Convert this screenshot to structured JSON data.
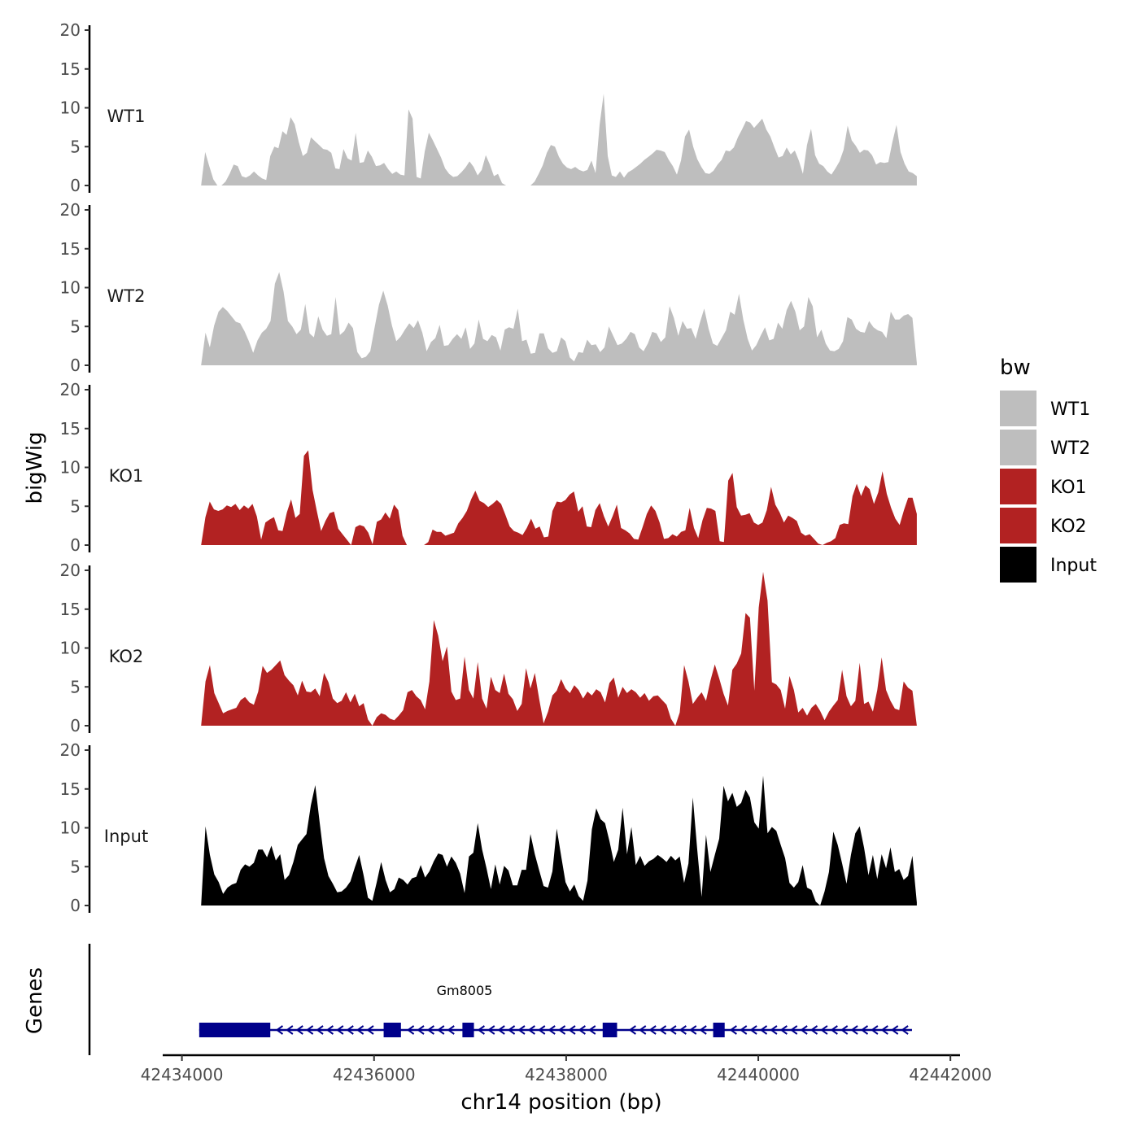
{
  "chart_data": {
    "type": "area",
    "ylabel": "bigWig",
    "xlabel": "chr14 position (bp)",
    "ylim": [
      0,
      20
    ],
    "y_ticks": [
      "0",
      "5",
      "10",
      "15",
      "20"
    ],
    "xlim": [
      42433800,
      42442100
    ],
    "x_ticks": [
      42434000,
      42436000,
      42438000,
      42440000,
      42442000
    ],
    "x_tick_labels": [
      "42434000",
      "42436000",
      "42438000",
      "42440000",
      "42442000"
    ],
    "data_x_start": 42434200,
    "data_x_end": 42441650,
    "series": [
      {
        "name": "WT1",
        "color": "#bebebe",
        "values": [
          0,
          4.3,
          2.5,
          0.8,
          0,
          0,
          0.5,
          1.5,
          2.7,
          2.5,
          1.2,
          1,
          1.3,
          1.8,
          1.3,
          0.9,
          0.7,
          3.8,
          5,
          4.8,
          7,
          6.5,
          8.8,
          7.9,
          5.6,
          3.8,
          4.2,
          6.2,
          5.7,
          5.2,
          4.7,
          4.6,
          4.2,
          2.2,
          2.1,
          4.7,
          3.5,
          3.2,
          6.8,
          2.9,
          3,
          4.5,
          3.7,
          2.5,
          2.6,
          2.9,
          2.1,
          1.5,
          1.8,
          1.4,
          1.3,
          9.8,
          8.6,
          1.1,
          0.9,
          4.4,
          6.8,
          5.8,
          4.7,
          3.6,
          2.2,
          1.5,
          1.1,
          1.2,
          1.7,
          2.3,
          3.1,
          2.4,
          1.3,
          2,
          3.9,
          2.7,
          1.2,
          1.5,
          0.3,
          0,
          0,
          0,
          0,
          0,
          0,
          0,
          0.5,
          1.5,
          2.6,
          4.2,
          5.2,
          5,
          3.7,
          2.8,
          2.3,
          2.1,
          2.4,
          2,
          1.8,
          2,
          3.2,
          1.6,
          7.8,
          11.8,
          3.8,
          1.3,
          1.1,
          1.8,
          1,
          1.7,
          2,
          2.4,
          2.8,
          3.3,
          3.7,
          4.1,
          4.6,
          4.5,
          4.3,
          3.3,
          2.5,
          1.4,
          3.2,
          6.3,
          7.2,
          5,
          3.4,
          2.4,
          1.6,
          1.5,
          1.9,
          2.7,
          3.3,
          4.5,
          4.4,
          4.9,
          6.2,
          7.2,
          8.3,
          8.1,
          7.4,
          8,
          8.6,
          7.2,
          6.3,
          4.9,
          3.6,
          3.8,
          4.9,
          4,
          4.5,
          3.2,
          1.5,
          5.2,
          7.3,
          3.9,
          2.8,
          2.5,
          1.8,
          1.4,
          2.2,
          3.1,
          4.6,
          7.7,
          5.8,
          5.1,
          4.2,
          4.6,
          4.5,
          3.9,
          2.7,
          3,
          2.9,
          3,
          5.6,
          7.8,
          4.3,
          2.8,
          1.8,
          1.6,
          1.2
        ]
      },
      {
        "name": "WT2",
        "color": "#bebebe",
        "values": [
          0,
          4.2,
          2.3,
          5.1,
          6.9,
          7.5,
          7,
          6.3,
          5.6,
          5.4,
          4.4,
          3.1,
          1.6,
          3.2,
          4.2,
          4.7,
          5.7,
          10.5,
          12,
          9.5,
          5.7,
          5,
          4,
          4.6,
          7.9,
          4.1,
          3.6,
          6.3,
          4.6,
          3.8,
          4,
          8.8,
          3.9,
          4.4,
          5.5,
          4.8,
          1.7,
          0.9,
          1.1,
          1.8,
          4.9,
          7.8,
          9.6,
          7.7,
          5.1,
          3.1,
          3.7,
          4.6,
          5.4,
          4.8,
          5.8,
          4.2,
          1.8,
          3,
          3.5,
          5.2,
          2.5,
          2.6,
          3.4,
          4,
          3.4,
          4.9,
          2.1,
          2.8,
          5.9,
          3.4,
          3.1,
          3.9,
          3.6,
          1.9,
          4.6,
          4.9,
          4.7,
          7.3,
          3.1,
          3.3,
          1.5,
          1.6,
          4.1,
          4.1,
          2.2,
          1.6,
          1.8,
          3.6,
          3.1,
          1,
          0.5,
          1.7,
          1.6,
          3.3,
          2.6,
          2.7,
          1.7,
          2.3,
          5,
          3.8,
          2.6,
          2.8,
          3.4,
          4.3,
          4,
          2.3,
          1.8,
          2.8,
          4.3,
          4.1,
          3,
          3.6,
          7.6,
          6.1,
          3.8,
          5.7,
          4.7,
          4.8,
          3.4,
          5.5,
          7.3,
          4.7,
          2.8,
          2.5,
          3.5,
          4.5,
          6.9,
          6.5,
          9.2,
          5.9,
          3.4,
          1.9,
          2.6,
          3.8,
          4.9,
          3.2,
          3.4,
          5.5,
          4.7,
          7.1,
          8.3,
          6.9,
          4.5,
          5,
          8.8,
          7.6,
          3.6,
          4.6,
          2.8,
          1.9,
          1.8,
          2.1,
          3.1,
          6.2,
          5.9,
          4.7,
          4.3,
          4.2,
          5.7,
          4.9,
          4.5,
          4.3,
          3.5,
          6.9,
          5.9,
          5.9,
          6.4,
          6.6,
          6.1,
          0.3
        ]
      },
      {
        "name": "KO1",
        "color": "#b22222",
        "values": [
          0,
          3.6,
          5.6,
          4.6,
          4.4,
          4.6,
          5.1,
          4.9,
          5.3,
          4.5,
          5.1,
          4.7,
          5.3,
          3.7,
          0.7,
          2.9,
          3.3,
          3.6,
          1.9,
          1.8,
          4.2,
          5.9,
          3.5,
          4,
          11.5,
          12.2,
          7.1,
          4.4,
          1.8,
          3.1,
          4.1,
          4.3,
          2.1,
          1.4,
          0.7,
          0,
          2.3,
          2.6,
          2.4,
          1.6,
          0.1,
          3,
          3.3,
          4.2,
          3.4,
          5.2,
          4.5,
          1.2,
          0,
          0,
          0,
          0,
          0,
          0.4,
          2,
          1.7,
          1.7,
          1.2,
          1.4,
          1.6,
          2.8,
          3.5,
          4.4,
          5.9,
          7,
          5.7,
          5.4,
          4.9,
          5.3,
          5.8,
          5.3,
          3.9,
          2.4,
          1.8,
          1.6,
          1.3,
          2.2,
          3.4,
          2.1,
          2.4,
          1,
          1.1,
          4.4,
          5.6,
          5.5,
          5.8,
          6.5,
          6.9,
          4.3,
          5,
          2.4,
          2.3,
          4.5,
          5.4,
          3.7,
          2.4,
          3.7,
          5.2,
          2.2,
          1.9,
          1.5,
          0.8,
          0.7,
          2.3,
          4,
          5.1,
          4.4,
          2.9,
          0.8,
          0.9,
          1.4,
          1.1,
          1.7,
          1.9,
          4.8,
          2.2,
          0.9,
          3.2,
          4.8,
          4.7,
          4.4,
          0.5,
          0.4,
          8.3,
          9.3,
          4.9,
          3.8,
          3.9,
          4.1,
          2.9,
          2.6,
          2.9,
          4.5,
          7.5,
          5.2,
          4.2,
          2.9,
          3.8,
          3.5,
          3.1,
          1.6,
          1.2,
          1.4,
          0.8,
          0.2,
          0,
          0.3,
          0.5,
          0.9,
          2.6,
          2.8,
          2.7,
          6.3,
          7.9,
          6.3,
          7.7,
          7.2,
          5.3,
          6.8,
          9.5,
          6.6,
          4.8,
          3.4,
          2.6,
          4.5,
          6.1,
          6.1,
          4
        ]
      },
      {
        "name": "KO2",
        "color": "#b22222",
        "values": [
          0,
          5.7,
          7.8,
          4.2,
          2.9,
          1.6,
          1.9,
          2.1,
          2.3,
          3.3,
          3.7,
          3,
          2.7,
          4.4,
          7.7,
          6.8,
          7.2,
          7.8,
          8.4,
          6.5,
          5.8,
          5.2,
          3.9,
          5.8,
          4.4,
          4.3,
          4.8,
          3.8,
          6.8,
          5.6,
          3.5,
          2.9,
          3.2,
          4.3,
          3,
          4.1,
          2.5,
          2.9,
          0.8,
          0,
          1.1,
          1.6,
          1.4,
          0.9,
          0.7,
          1.3,
          2,
          4.3,
          4.6,
          3.8,
          3.3,
          2.1,
          5.7,
          13.6,
          11.6,
          8.3,
          10.2,
          4.4,
          3.3,
          3.5,
          8.9,
          4.6,
          3.5,
          8.2,
          3.5,
          2.2,
          6.3,
          4.6,
          4.2,
          6.7,
          4.1,
          3.4,
          1.9,
          2.8,
          7.4,
          4.8,
          6.8,
          3.4,
          0.3,
          1.8,
          3.9,
          4.5,
          6,
          4.8,
          4.2,
          5.2,
          4.6,
          3.5,
          4.4,
          3.9,
          4.7,
          4.3,
          3,
          5.5,
          6.2,
          3.6,
          5,
          4.2,
          4.7,
          4.3,
          3.6,
          4.2,
          3.2,
          3.8,
          3.9,
          3.3,
          2.7,
          0.9,
          0,
          1.7,
          7.8,
          5.7,
          2.8,
          3.6,
          4.3,
          3.2,
          5.8,
          7.9,
          6.1,
          4.1,
          2.6,
          7.2,
          8,
          9.3,
          14.5,
          13.9,
          4.5,
          15.2,
          19.8,
          16.1,
          5.6,
          5.3,
          4.6,
          2.2,
          6.4,
          4.6,
          1.7,
          2.3,
          1.3,
          2.3,
          2.8,
          1.9,
          0.7,
          1.8,
          2.6,
          3.3,
          7.2,
          3.8,
          2.5,
          3.2,
          8.1,
          2.8,
          3.1,
          1.8,
          4.6,
          8.8,
          4.6,
          3.2,
          2.2,
          2,
          5.7,
          4.9,
          4.5,
          0
        ]
      },
      {
        "name": "Input",
        "color": "#000000",
        "values": [
          0,
          10.2,
          6.5,
          4,
          3,
          1.5,
          2.3,
          2.7,
          2.9,
          4.6,
          5.3,
          5,
          5.5,
          7.2,
          7.2,
          6.2,
          7.7,
          5.8,
          6.6,
          3.3,
          3.9,
          5.6,
          7.8,
          8.5,
          9.2,
          12.9,
          15.5,
          10.7,
          6.1,
          3.8,
          2.8,
          1.7,
          1.8,
          2.3,
          3.1,
          4.9,
          6.5,
          3.9,
          1,
          0.6,
          3,
          5.6,
          3.3,
          1.7,
          2.1,
          3.6,
          3.3,
          2.7,
          3.5,
          3.7,
          5.2,
          3.6,
          4.4,
          5.7,
          6.7,
          6.5,
          5,
          6.3,
          5.5,
          4.1,
          1.6,
          6.3,
          6.8,
          10.6,
          7.2,
          4.8,
          2.1,
          5.3,
          2.7,
          5.1,
          4.5,
          2.6,
          2.6,
          4.6,
          4.6,
          9.2,
          6.6,
          4.5,
          2.5,
          2.3,
          4.4,
          9.9,
          6.4,
          3,
          1.8,
          2.7,
          1.2,
          0.6,
          3.2,
          9.8,
          12.5,
          11.1,
          10.6,
          8.3,
          5.6,
          7.2,
          12.6,
          6.6,
          10.1,
          5.2,
          6.4,
          5.1,
          5.7,
          6,
          6.5,
          6.1,
          5.6,
          6.4,
          5.8,
          6.3,
          2.9,
          5.4,
          13.9,
          7.2,
          1.1,
          9.1,
          4.3,
          6.5,
          8.6,
          15.4,
          13.4,
          14.5,
          12.7,
          13.2,
          14.9,
          13.9,
          10.7,
          9.9,
          16.7,
          9.3,
          10.1,
          9.6,
          7.8,
          6.1,
          2.9,
          2.3,
          3,
          5.2,
          2.3,
          2,
          0.5,
          0,
          1.8,
          4.3,
          9.5,
          7.8,
          5.4,
          2.8,
          6.5,
          9.3,
          10.2,
          7.4,
          3.9,
          6.5,
          3.4,
          6.6,
          4.8,
          7.5,
          4.3,
          4.7,
          3.3,
          3.8,
          6.4,
          0.4
        ]
      }
    ],
    "legend_title": "bw",
    "legend_position": "right",
    "legend": [
      {
        "label": "WT1",
        "color": "#bebebe"
      },
      {
        "label": "WT2",
        "color": "#bebebe"
      },
      {
        "label": "KO1",
        "color": "#b22222"
      },
      {
        "label": "KO2",
        "color": "#b22222"
      },
      {
        "label": "Input",
        "color": "#000000"
      }
    ],
    "genes_track": {
      "title": "Genes",
      "gene_name": "Gm8005",
      "strand": "-",
      "color": "#00008b",
      "start": 42434180,
      "end": 42441600,
      "exons": [
        [
          42434180,
          42434920
        ],
        [
          42436100,
          42436280
        ],
        [
          42436920,
          42437040
        ],
        [
          42438380,
          42438530
        ],
        [
          42439530,
          42439650
        ]
      ]
    }
  }
}
